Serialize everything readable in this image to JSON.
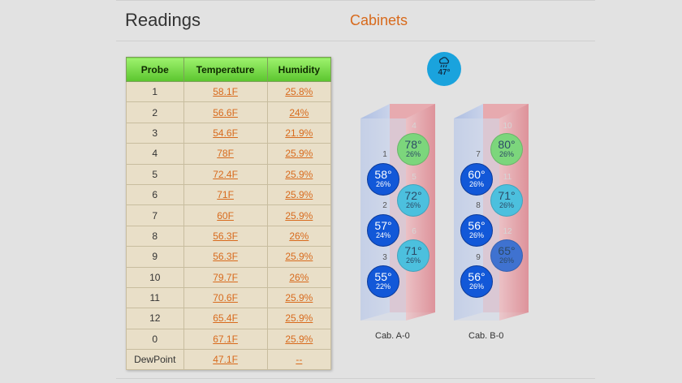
{
  "page_title": "Readings",
  "cabinets_title": "Cabinets",
  "table": {
    "headers": [
      "Probe",
      "Temperature",
      "Humidity"
    ],
    "rows": [
      {
        "probe": "1",
        "temp": "58.1F",
        "hum": "25.8%"
      },
      {
        "probe": "2",
        "temp": "56.6F",
        "hum": "24%"
      },
      {
        "probe": "3",
        "temp": "54.6F",
        "hum": "21.9%"
      },
      {
        "probe": "4",
        "temp": "78F",
        "hum": "25.9%"
      },
      {
        "probe": "5",
        "temp": "72.4F",
        "hum": "25.9%"
      },
      {
        "probe": "6",
        "temp": "71F",
        "hum": "25.9%"
      },
      {
        "probe": "7",
        "temp": "60F",
        "hum": "25.9%"
      },
      {
        "probe": "8",
        "temp": "56.3F",
        "hum": "26%"
      },
      {
        "probe": "9",
        "temp": "56.3F",
        "hum": "25.9%"
      },
      {
        "probe": "10",
        "temp": "79.7F",
        "hum": "26%"
      },
      {
        "probe": "11",
        "temp": "70.6F",
        "hum": "25.9%"
      },
      {
        "probe": "12",
        "temp": "65.4F",
        "hum": "25.9%"
      },
      {
        "probe": "0",
        "temp": "67.1F",
        "hum": "25.9%"
      },
      {
        "probe": "DewPoint",
        "temp": "47.1F",
        "hum": "--"
      }
    ]
  },
  "weather": {
    "icon": "cloud-rain-icon",
    "temp": "47°"
  },
  "cabinets": {
    "a": {
      "label": "Cab. A-0",
      "probes": [
        {
          "num": "1",
          "temp": "58°",
          "hum": "26%",
          "color": "#1258d8"
        },
        {
          "num": "2",
          "temp": "57°",
          "hum": "24%",
          "color": "#1258d8"
        },
        {
          "num": "3",
          "temp": "55°",
          "hum": "22%",
          "color": "#1258d8"
        },
        {
          "num": "4",
          "temp": "78°",
          "hum": "26%",
          "color": "#7cd67c"
        },
        {
          "num": "5",
          "temp": "72°",
          "hum": "26%",
          "color": "#4cc0de"
        },
        {
          "num": "6",
          "temp": "71°",
          "hum": "26%",
          "color": "#4cc0de"
        }
      ]
    },
    "b": {
      "label": "Cab. B-0",
      "probes": [
        {
          "num": "7",
          "temp": "60°",
          "hum": "26%",
          "color": "#1258d8"
        },
        {
          "num": "8",
          "temp": "56°",
          "hum": "26%",
          "color": "#1258d8"
        },
        {
          "num": "9",
          "temp": "56°",
          "hum": "26%",
          "color": "#1258d8"
        },
        {
          "num": "10",
          "temp": "80°",
          "hum": "26%",
          "color": "#7cd67c"
        },
        {
          "num": "11",
          "temp": "71°",
          "hum": "26%",
          "color": "#4cc0de"
        },
        {
          "num": "12",
          "temp": "65°",
          "hum": "26%",
          "color": "#3f72d0"
        }
      ]
    }
  }
}
